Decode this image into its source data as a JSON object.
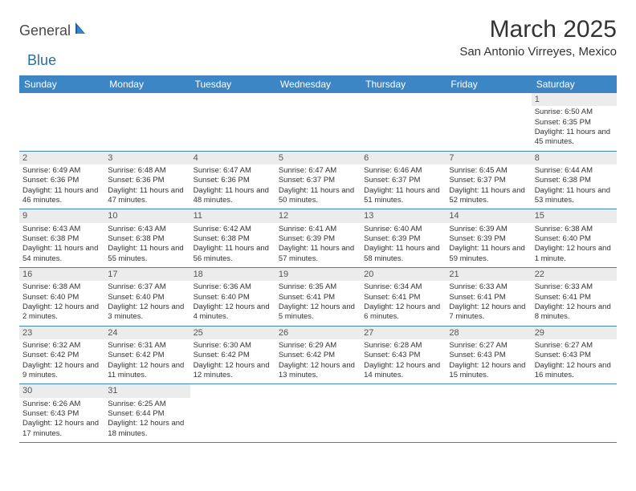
{
  "logo": {
    "part1": "General",
    "part2": "Blue"
  },
  "title": "March 2025",
  "location": "San Antonio Virreyes, Mexico",
  "weekdays": [
    "Sunday",
    "Monday",
    "Tuesday",
    "Wednesday",
    "Thursday",
    "Friday",
    "Saturday"
  ],
  "colors": {
    "header_bg": "#3d86c6",
    "header_text": "#ffffff",
    "daynum_bg": "#ececec",
    "border": "#3d86c6",
    "logo_gray": "#4a4a4a",
    "logo_blue": "#2b6ca3"
  },
  "weeks": [
    [
      {
        "n": "",
        "empty": true
      },
      {
        "n": "",
        "empty": true
      },
      {
        "n": "",
        "empty": true
      },
      {
        "n": "",
        "empty": true
      },
      {
        "n": "",
        "empty": true
      },
      {
        "n": "",
        "empty": true
      },
      {
        "n": "1",
        "sr": "Sunrise: 6:50 AM",
        "ss": "Sunset: 6:35 PM",
        "dl": "Daylight: 11 hours and 45 minutes."
      }
    ],
    [
      {
        "n": "2",
        "sr": "Sunrise: 6:49 AM",
        "ss": "Sunset: 6:36 PM",
        "dl": "Daylight: 11 hours and 46 minutes."
      },
      {
        "n": "3",
        "sr": "Sunrise: 6:48 AM",
        "ss": "Sunset: 6:36 PM",
        "dl": "Daylight: 11 hours and 47 minutes."
      },
      {
        "n": "4",
        "sr": "Sunrise: 6:47 AM",
        "ss": "Sunset: 6:36 PM",
        "dl": "Daylight: 11 hours and 48 minutes."
      },
      {
        "n": "5",
        "sr": "Sunrise: 6:47 AM",
        "ss": "Sunset: 6:37 PM",
        "dl": "Daylight: 11 hours and 50 minutes."
      },
      {
        "n": "6",
        "sr": "Sunrise: 6:46 AM",
        "ss": "Sunset: 6:37 PM",
        "dl": "Daylight: 11 hours and 51 minutes."
      },
      {
        "n": "7",
        "sr": "Sunrise: 6:45 AM",
        "ss": "Sunset: 6:37 PM",
        "dl": "Daylight: 11 hours and 52 minutes."
      },
      {
        "n": "8",
        "sr": "Sunrise: 6:44 AM",
        "ss": "Sunset: 6:38 PM",
        "dl": "Daylight: 11 hours and 53 minutes."
      }
    ],
    [
      {
        "n": "9",
        "sr": "Sunrise: 6:43 AM",
        "ss": "Sunset: 6:38 PM",
        "dl": "Daylight: 11 hours and 54 minutes."
      },
      {
        "n": "10",
        "sr": "Sunrise: 6:43 AM",
        "ss": "Sunset: 6:38 PM",
        "dl": "Daylight: 11 hours and 55 minutes."
      },
      {
        "n": "11",
        "sr": "Sunrise: 6:42 AM",
        "ss": "Sunset: 6:38 PM",
        "dl": "Daylight: 11 hours and 56 minutes."
      },
      {
        "n": "12",
        "sr": "Sunrise: 6:41 AM",
        "ss": "Sunset: 6:39 PM",
        "dl": "Daylight: 11 hours and 57 minutes."
      },
      {
        "n": "13",
        "sr": "Sunrise: 6:40 AM",
        "ss": "Sunset: 6:39 PM",
        "dl": "Daylight: 11 hours and 58 minutes."
      },
      {
        "n": "14",
        "sr": "Sunrise: 6:39 AM",
        "ss": "Sunset: 6:39 PM",
        "dl": "Daylight: 11 hours and 59 minutes."
      },
      {
        "n": "15",
        "sr": "Sunrise: 6:38 AM",
        "ss": "Sunset: 6:40 PM",
        "dl": "Daylight: 12 hours and 1 minute."
      }
    ],
    [
      {
        "n": "16",
        "sr": "Sunrise: 6:38 AM",
        "ss": "Sunset: 6:40 PM",
        "dl": "Daylight: 12 hours and 2 minutes."
      },
      {
        "n": "17",
        "sr": "Sunrise: 6:37 AM",
        "ss": "Sunset: 6:40 PM",
        "dl": "Daylight: 12 hours and 3 minutes."
      },
      {
        "n": "18",
        "sr": "Sunrise: 6:36 AM",
        "ss": "Sunset: 6:40 PM",
        "dl": "Daylight: 12 hours and 4 minutes."
      },
      {
        "n": "19",
        "sr": "Sunrise: 6:35 AM",
        "ss": "Sunset: 6:41 PM",
        "dl": "Daylight: 12 hours and 5 minutes."
      },
      {
        "n": "20",
        "sr": "Sunrise: 6:34 AM",
        "ss": "Sunset: 6:41 PM",
        "dl": "Daylight: 12 hours and 6 minutes."
      },
      {
        "n": "21",
        "sr": "Sunrise: 6:33 AM",
        "ss": "Sunset: 6:41 PM",
        "dl": "Daylight: 12 hours and 7 minutes."
      },
      {
        "n": "22",
        "sr": "Sunrise: 6:33 AM",
        "ss": "Sunset: 6:41 PM",
        "dl": "Daylight: 12 hours and 8 minutes."
      }
    ],
    [
      {
        "n": "23",
        "sr": "Sunrise: 6:32 AM",
        "ss": "Sunset: 6:42 PM",
        "dl": "Daylight: 12 hours and 9 minutes."
      },
      {
        "n": "24",
        "sr": "Sunrise: 6:31 AM",
        "ss": "Sunset: 6:42 PM",
        "dl": "Daylight: 12 hours and 11 minutes."
      },
      {
        "n": "25",
        "sr": "Sunrise: 6:30 AM",
        "ss": "Sunset: 6:42 PM",
        "dl": "Daylight: 12 hours and 12 minutes."
      },
      {
        "n": "26",
        "sr": "Sunrise: 6:29 AM",
        "ss": "Sunset: 6:42 PM",
        "dl": "Daylight: 12 hours and 13 minutes."
      },
      {
        "n": "27",
        "sr": "Sunrise: 6:28 AM",
        "ss": "Sunset: 6:43 PM",
        "dl": "Daylight: 12 hours and 14 minutes."
      },
      {
        "n": "28",
        "sr": "Sunrise: 6:27 AM",
        "ss": "Sunset: 6:43 PM",
        "dl": "Daylight: 12 hours and 15 minutes."
      },
      {
        "n": "29",
        "sr": "Sunrise: 6:27 AM",
        "ss": "Sunset: 6:43 PM",
        "dl": "Daylight: 12 hours and 16 minutes."
      }
    ],
    [
      {
        "n": "30",
        "sr": "Sunrise: 6:26 AM",
        "ss": "Sunset: 6:43 PM",
        "dl": "Daylight: 12 hours and 17 minutes."
      },
      {
        "n": "31",
        "sr": "Sunrise: 6:25 AM",
        "ss": "Sunset: 6:44 PM",
        "dl": "Daylight: 12 hours and 18 minutes."
      },
      {
        "n": "",
        "empty": true
      },
      {
        "n": "",
        "empty": true
      },
      {
        "n": "",
        "empty": true
      },
      {
        "n": "",
        "empty": true
      },
      {
        "n": "",
        "empty": true
      }
    ]
  ]
}
